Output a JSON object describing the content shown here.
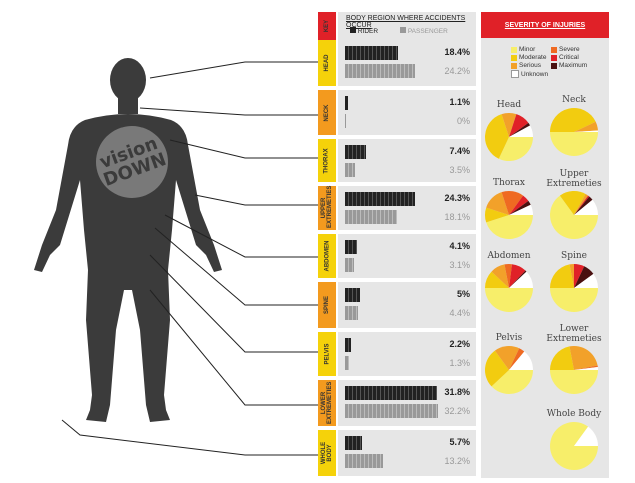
{
  "logo": "vision DOWN",
  "chart_data": [
    {
      "type": "bar",
      "title": "BODY REGION WHERE ACCIDENTS OCCUR",
      "key_label": "KEY",
      "legend": [
        "RIDER",
        "PASSENGER"
      ],
      "categories": [
        "HEAD",
        "NECK",
        "THORAX",
        "UPPER EXTREMETIES",
        "ABDOMEN",
        "SPINE",
        "PELVIS",
        "LOWER EXTREMETIES",
        "WHOLE BODY"
      ],
      "category_colors": [
        "#f5d20a",
        "#f39a1e",
        "#f5d20a",
        "#f39a1e",
        "#f5d20a",
        "#f39a1e",
        "#f5d20a",
        "#f39a1e",
        "#f5d20a"
      ],
      "series": [
        {
          "name": "RIDER",
          "values": [
            18.4,
            1.1,
            7.4,
            24.3,
            4.1,
            5,
            2.2,
            31.8,
            5.7
          ],
          "labels": [
            "18.4%",
            "1.1%",
            "7.4%",
            "24.3%",
            "4.1%",
            "5%",
            "2.2%",
            "31.8%",
            "5.7%"
          ]
        },
        {
          "name": "PASSENGER",
          "values": [
            24.2,
            0,
            3.5,
            18.1,
            3.1,
            4.4,
            1.3,
            32.2,
            13.2
          ],
          "labels": [
            "24.2%",
            "0%",
            "3.5%",
            "18.1%",
            "3.1%",
            "4.4%",
            "1.3%",
            "32.2%",
            "13.2%"
          ]
        }
      ],
      "unit": "%"
    },
    {
      "type": "pie",
      "title": "SEVERITY OF INJURIES",
      "legend": [
        "Minor",
        "Moderate",
        "Serious",
        "Unknown",
        "Severe",
        "Critical",
        "Maximum"
      ],
      "colors": {
        "Minor": "#f7ee6a",
        "Moderate": "#f2cc10",
        "Serious": "#f2a12a",
        "Severe": "#ef6a22",
        "Critical": "#e02128",
        "Maximum": "#4a1010",
        "Unknown": "#ffffff"
      },
      "order": [
        "Minor",
        "Moderate",
        "Serious",
        "Severe",
        "Critical",
        "Maximum",
        "Unknown"
      ],
      "pies": [
        {
          "name": "Head",
          "values": [
            32,
            38,
            10,
            0,
            10,
            2,
            8
          ]
        },
        {
          "name": "Neck",
          "values": [
            50,
            43,
            6,
            0,
            0,
            0,
            1
          ]
        },
        {
          "name": "Thorax",
          "values": [
            45,
            10,
            15,
            15,
            5,
            3,
            7
          ]
        },
        {
          "name": "Upper Extremeties",
          "values": [
            65,
            18,
            2,
            0,
            1,
            3,
            11
          ]
        },
        {
          "name": "Abdomen",
          "values": [
            50,
            12,
            10,
            5,
            10,
            1,
            12
          ]
        },
        {
          "name": "Spine",
          "values": [
            50,
            22,
            3,
            0,
            7,
            8,
            10
          ]
        },
        {
          "name": "Pelvis",
          "values": [
            38,
            27,
            17,
            4,
            0,
            0,
            14
          ]
        },
        {
          "name": "Lower Extremeties",
          "values": [
            50,
            22,
            25,
            1,
            0,
            0,
            2
          ]
        },
        {
          "name": "Whole Body",
          "values": [
            85,
            0,
            0,
            0,
            0,
            0,
            15
          ]
        }
      ]
    }
  ]
}
